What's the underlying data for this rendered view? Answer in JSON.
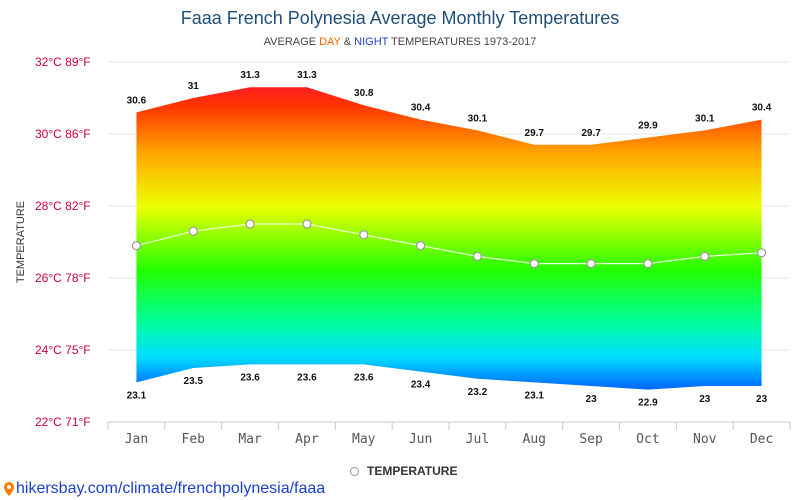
{
  "title": "Faaa French Polynesia Average Monthly Temperatures",
  "subtitle": {
    "prefix": "AVERAGE ",
    "day": "DAY",
    "amp": " & ",
    "night": "NIGHT",
    "suffix": " TEMPERATURES 1973-2017"
  },
  "legend": {
    "label": "TEMPERATURE"
  },
  "source": {
    "text": "hikersbay.com/climate/frenchpolynesia/faaa"
  },
  "colors": {
    "title": "#1f4e79",
    "yaxis_labels": "#cc0044",
    "xaxis_labels": "#555555",
    "source": "#1a3fcc"
  },
  "chart_data": {
    "type": "area",
    "categories": [
      "Jan",
      "Feb",
      "Mar",
      "Apr",
      "May",
      "Jun",
      "Jul",
      "Aug",
      "Sep",
      "Oct",
      "Nov",
      "Dec"
    ],
    "ylabel": "TEMPERATURE",
    "ylim": [
      22,
      32
    ],
    "yticks": [
      {
        "value": 32,
        "label": "32°C 89°F"
      },
      {
        "value": 30,
        "label": "30°C 86°F"
      },
      {
        "value": 28,
        "label": "28°C 82°F"
      },
      {
        "value": 26,
        "label": "26°C 78°F"
      },
      {
        "value": 24,
        "label": "24°C 75°F"
      },
      {
        "value": 22,
        "label": "22°C 71°F"
      }
    ],
    "grid": true,
    "legend_position": "bottom",
    "series": [
      {
        "values": [
          30.6,
          31,
          31.3,
          31.3,
          30.8,
          30.4,
          30.1,
          29.7,
          29.7,
          29.9,
          30.1,
          30.4
        ]
      },
      {
        "values": [
          23.1,
          23.5,
          23.6,
          23.6,
          23.6,
          23.4,
          23.2,
          23.1,
          23,
          22.9,
          23,
          23
        ]
      },
      {
        "name": "TEMPERATURE",
        "values": [
          26.9,
          27.3,
          27.5,
          27.5,
          27.2,
          26.9,
          26.6,
          26.4,
          26.4,
          26.4,
          26.6,
          26.7
        ]
      }
    ]
  }
}
